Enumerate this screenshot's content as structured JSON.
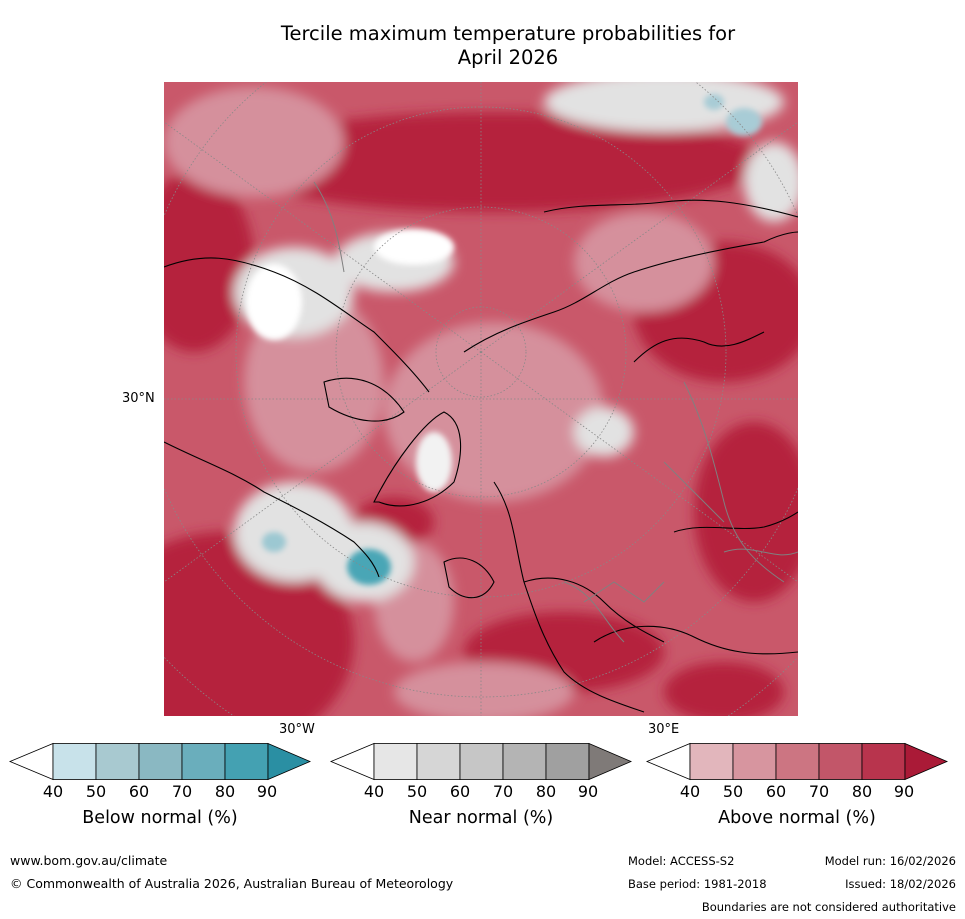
{
  "title_line1": "Tercile maximum temperature probabilities for",
  "title_line2": "April 2026",
  "map": {
    "lat_label": "30°N",
    "lon_label_west": "30°W",
    "lon_label_east": "30°E",
    "colors": {
      "above_dark": "#b5203c",
      "above_mid": "#c9586a",
      "above_light": "#d5909c",
      "near": "#e2e2e2",
      "below": "#4aa6b6"
    }
  },
  "colorbars": [
    {
      "label": "Below normal (%)",
      "ticks": [
        "40",
        "50",
        "60",
        "70",
        "80",
        "90"
      ],
      "colors": [
        "#ffffff",
        "#c8e2ea",
        "#a8c9d0",
        "#8ab8c2",
        "#6aaebc",
        "#44a1b2",
        "#2a8fa3"
      ]
    },
    {
      "label": "Near normal (%)",
      "ticks": [
        "40",
        "50",
        "60",
        "70",
        "80",
        "90"
      ],
      "colors": [
        "#ffffff",
        "#e6e6e6",
        "#d6d6d6",
        "#c6c6c6",
        "#b4b4b4",
        "#a0a0a0",
        "#7f7a78"
      ]
    },
    {
      "label": "Above normal (%)",
      "ticks": [
        "40",
        "50",
        "60",
        "70",
        "80",
        "90"
      ],
      "colors": [
        "#ffffff",
        "#e2b6bc",
        "#d7959f",
        "#cc7582",
        "#c25669",
        "#b8344d",
        "#aa1a37"
      ]
    }
  ],
  "footer": {
    "url": "www.bom.gov.au/climate",
    "copyright": "© Commonwealth of Australia 2026, Australian Bureau of Meteorology",
    "model": "Model: ACCESS-S2",
    "base_period": "Base period: 1981-2018",
    "model_run": "Model run: 16/02/2026",
    "issued": "Issued: 18/02/2026",
    "disclaimer": "Boundaries are not considered authoritative"
  }
}
